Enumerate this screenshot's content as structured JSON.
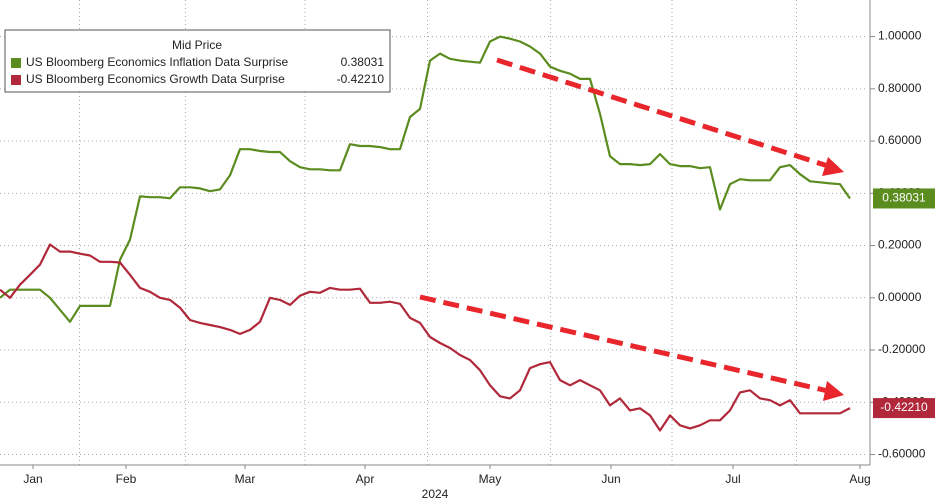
{
  "chart_data": {
    "type": "line",
    "legend_title": "Mid Price",
    "year_label": "2024",
    "grid": true,
    "xlim": [
      0,
      86.8
    ],
    "xticks": [
      {
        "value": 3.3,
        "label": "Jan"
      },
      {
        "value": 12.6,
        "label": "Feb"
      },
      {
        "value": 24.5,
        "label": "Mar"
      },
      {
        "value": 36.5,
        "label": "Apr"
      },
      {
        "value": 49,
        "label": "May"
      },
      {
        "value": 61.1,
        "label": "Jun"
      },
      {
        "value": 73.3,
        "label": "Jul"
      },
      {
        "value": 86,
        "label": "Aug"
      }
    ],
    "ylim": [
      -0.64,
      1.14
    ],
    "yticks": [
      {
        "value": 1,
        "label": "1.00000"
      },
      {
        "value": 0.8,
        "label": "0.80000"
      },
      {
        "value": 0.6,
        "label": "0.60000"
      },
      {
        "value": 0.4,
        "label": "0.40000"
      },
      {
        "value": 0.2,
        "label": "0.20000"
      },
      {
        "value": 0,
        "label": "0.00000"
      },
      {
        "value": -0.2,
        "label": "-0.20000"
      },
      {
        "value": -0.4,
        "label": "-0.40000"
      },
      {
        "value": -0.6,
        "label": "-0.60000"
      }
    ],
    "series": [
      {
        "name": "US Bloomberg Economics Inflation Data Surprise",
        "color": "#5b8c1f",
        "values": [
          0,
          0.031,
          0.031,
          0.031,
          0.031,
          0,
          -0.046,
          -0.092,
          -0.031,
          -0.031,
          -0.031,
          -0.031,
          0.146,
          0.223,
          0.388,
          0.385,
          0.385,
          0.381,
          0.423,
          0.423,
          0.419,
          0.408,
          0.415,
          0.469,
          0.569,
          0.569,
          0.562,
          0.558,
          0.558,
          0.523,
          0.5,
          0.492,
          0.492,
          0.488,
          0.488,
          0.588,
          0.581,
          0.581,
          0.577,
          0.569,
          0.569,
          0.692,
          0.723,
          0.908,
          0.935,
          0.915,
          0.908,
          0.904,
          0.9,
          0.981,
          1.0,
          0.992,
          0.981,
          0.962,
          0.935,
          0.885,
          0.869,
          0.858,
          0.838,
          0.838,
          0.704,
          0.542,
          0.512,
          0.512,
          0.508,
          0.512,
          0.55,
          0.512,
          0.504,
          0.504,
          0.496,
          0.5,
          0.338,
          0.435,
          0.454,
          0.45,
          0.45,
          0.45,
          0.5,
          0.508,
          0.473,
          0.446,
          0.442,
          0.438,
          0.435,
          0.38031
        ],
        "value_labels": [
          null,
          null,
          null,
          null,
          null,
          null,
          null,
          null,
          null,
          null,
          null,
          null,
          null,
          null,
          null,
          null,
          null,
          null,
          null,
          null,
          null,
          null,
          null,
          null,
          null,
          null,
          null,
          null,
          null,
          null,
          null,
          null,
          null,
          null,
          null,
          null,
          null,
          null,
          null,
          null,
          null,
          null,
          null,
          null,
          null,
          null,
          null,
          null,
          null,
          null,
          null,
          null,
          null,
          null,
          null,
          null,
          null,
          null,
          null,
          null,
          null,
          null,
          null,
          null,
          null,
          null,
          null,
          null,
          null,
          null,
          null,
          null,
          null,
          null,
          null,
          null,
          null,
          null,
          null,
          null,
          null,
          null,
          null,
          null,
          null,
          "0.38031"
        ]
      },
      {
        "name": "US Bloomberg Economics Growth Data Surprise",
        "color": "#b0283a",
        "values": [
          0.031,
          0,
          0.05,
          0.088,
          0.127,
          0.204,
          0.177,
          0.177,
          0.169,
          0.162,
          0.138,
          0.138,
          0.135,
          0.088,
          0.038,
          0.023,
          0,
          -0.008,
          -0.038,
          -0.085,
          -0.096,
          -0.104,
          -0.112,
          -0.123,
          -0.138,
          -0.123,
          -0.092,
          0,
          -0.008,
          -0.027,
          0.008,
          0.023,
          0.019,
          0.038,
          0.031,
          0.031,
          0.035,
          -0.019,
          -0.019,
          -0.015,
          -0.023,
          -0.077,
          -0.096,
          -0.15,
          -0.173,
          -0.192,
          -0.219,
          -0.238,
          -0.277,
          -0.335,
          -0.377,
          -0.385,
          -0.354,
          -0.269,
          -0.254,
          -0.246,
          -0.315,
          -0.335,
          -0.315,
          -0.335,
          -0.354,
          -0.412,
          -0.385,
          -0.431,
          -0.423,
          -0.45,
          -0.508,
          -0.45,
          -0.488,
          -0.5,
          -0.488,
          -0.469,
          -0.469,
          -0.431,
          -0.362,
          -0.354,
          -0.385,
          -0.392,
          -0.412,
          -0.392,
          -0.442,
          -0.442,
          -0.442,
          -0.442,
          -0.442,
          -0.4221
        ],
        "value_labels": [
          null,
          null,
          null,
          null,
          null,
          null,
          null,
          null,
          null,
          null,
          null,
          null,
          null,
          null,
          null,
          null,
          null,
          null,
          null,
          null,
          null,
          null,
          null,
          null,
          null,
          null,
          null,
          null,
          null,
          null,
          null,
          null,
          null,
          null,
          null,
          null,
          null,
          null,
          null,
          null,
          null,
          null,
          null,
          null,
          null,
          null,
          null,
          null,
          null,
          null,
          null,
          null,
          null,
          null,
          null,
          null,
          null,
          null,
          null,
          null,
          null,
          null,
          null,
          null,
          null,
          null,
          null,
          null,
          null,
          null,
          null,
          null,
          null,
          null,
          null,
          null,
          null,
          null,
          null,
          null,
          null,
          null,
          null,
          null,
          null,
          "-0.42210"
        ]
      }
    ]
  }
}
